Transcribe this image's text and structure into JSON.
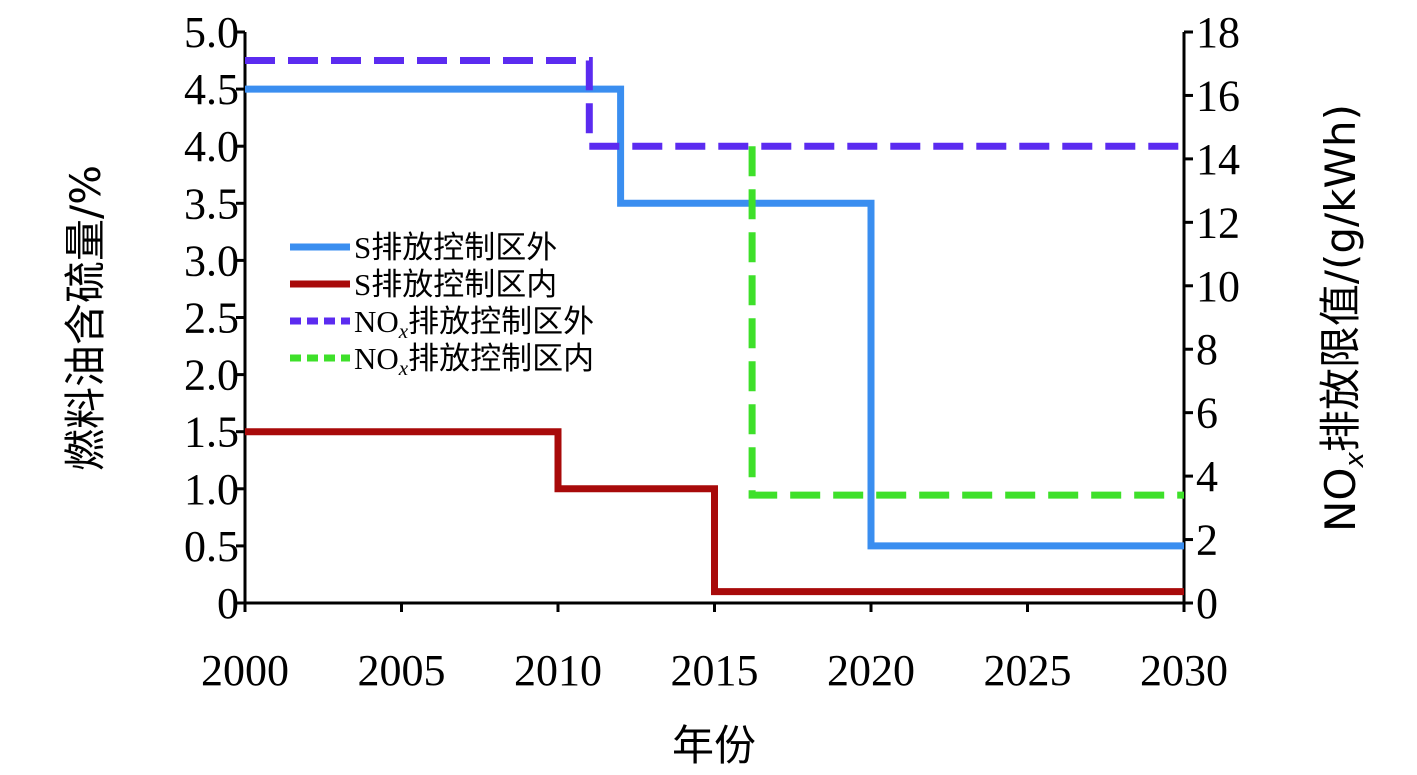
{
  "chart_data": {
    "type": "line",
    "xlabel": "年份",
    "ylabel_left": "燃料油含硫量/%",
    "ylabel_right_prefix": "NO",
    "ylabel_right_sub": "x",
    "ylabel_right_suffix": "排放限值/(g/kWh)",
    "xlim": [
      2000,
      2030
    ],
    "ylim_left": [
      0,
      5.0
    ],
    "ylim_right": [
      0,
      18
    ],
    "x_ticks": [
      "2000",
      "2005",
      "2010",
      "2015",
      "2020",
      "2025",
      "2030"
    ],
    "y_left_ticks": [
      "0",
      "0.5",
      "1.0",
      "1.5",
      "2.0",
      "2.5",
      "3.0",
      "3.5",
      "4.0",
      "4.5",
      "5.0"
    ],
    "y_right_ticks": [
      "0",
      "2",
      "4",
      "6",
      "8",
      "10",
      "12",
      "14",
      "16",
      "18"
    ],
    "legend_position": "center-left",
    "series": [
      {
        "name": "S排放控制区外",
        "name_prefix": "S排放控制区外",
        "name_sub": "",
        "name_suffix": "",
        "axis": "left",
        "style": "solid",
        "color": "#3a8ef0",
        "points": [
          [
            2000,
            4.5
          ],
          [
            2012,
            4.5
          ],
          [
            2012,
            3.5
          ],
          [
            2020,
            3.5
          ],
          [
            2020,
            0.5
          ],
          [
            2030,
            0.5
          ]
        ]
      },
      {
        "name": "S排放控制区内",
        "name_prefix": "S排放控制区内",
        "name_sub": "",
        "name_suffix": "",
        "axis": "left",
        "style": "solid",
        "color": "#a80a0a",
        "points": [
          [
            2000,
            1.5
          ],
          [
            2010,
            1.5
          ],
          [
            2010,
            1.0
          ],
          [
            2015,
            1.0
          ],
          [
            2015,
            0.1
          ],
          [
            2030,
            0.1
          ]
        ]
      },
      {
        "name": "NOx排放控制区外",
        "name_prefix": "NO",
        "name_sub": "x",
        "name_suffix": "排放控制区外",
        "axis": "right",
        "style": "dashed",
        "color": "#5b2bf0",
        "points": [
          [
            2000,
            17.1
          ],
          [
            2011,
            17.1
          ],
          [
            2011,
            14.4
          ],
          [
            2030,
            14.4
          ]
        ]
      },
      {
        "name": "NOx排放控制区内",
        "name_prefix": "NO",
        "name_sub": "x",
        "name_suffix": "排放控制区内",
        "axis": "right",
        "style": "dashed",
        "color": "#3ee02a",
        "points": [
          [
            2016.2,
            14.4
          ],
          [
            2016.2,
            3.4
          ],
          [
            2030,
            3.4
          ]
        ]
      }
    ]
  }
}
